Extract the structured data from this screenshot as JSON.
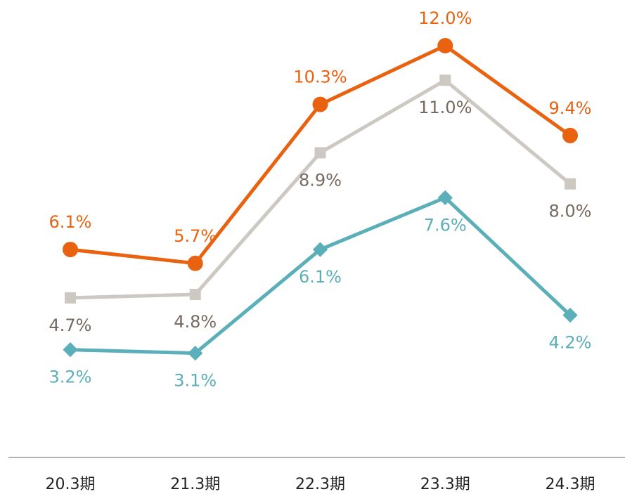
{
  "chart_data": {
    "type": "line",
    "categories": [
      "20.3期",
      "21.3期",
      "22.3期",
      "23.3期",
      "24.3期"
    ],
    "ylim": [
      0,
      13.2
    ],
    "series": [
      {
        "color": "#e8620f",
        "label_color": "#e8620f",
        "marker": "circle",
        "label_position": "above",
        "values": [
          6.1,
          5.7,
          10.3,
          12.0,
          9.4
        ],
        "value_labels": [
          "6.1%",
          "5.7%",
          "10.3%",
          "12.0%",
          "9.4%"
        ]
      },
      {
        "color": "#cdc8c2",
        "label_color": "#76695f",
        "marker": "square",
        "label_position": "below",
        "values": [
          4.7,
          4.8,
          8.9,
          11.0,
          8.0
        ],
        "value_labels": [
          "4.7%",
          "4.8%",
          "8.9%",
          "11.0%",
          "8.0%"
        ]
      },
      {
        "color": "#5aafb8",
        "label_color": "#5aafb8",
        "marker": "diamond",
        "label_position": "below",
        "values": [
          3.2,
          3.1,
          6.1,
          7.6,
          4.2
        ],
        "value_labels": [
          "3.2%",
          "3.1%",
          "6.1%",
          "7.6%",
          "4.2%"
        ]
      }
    ]
  }
}
